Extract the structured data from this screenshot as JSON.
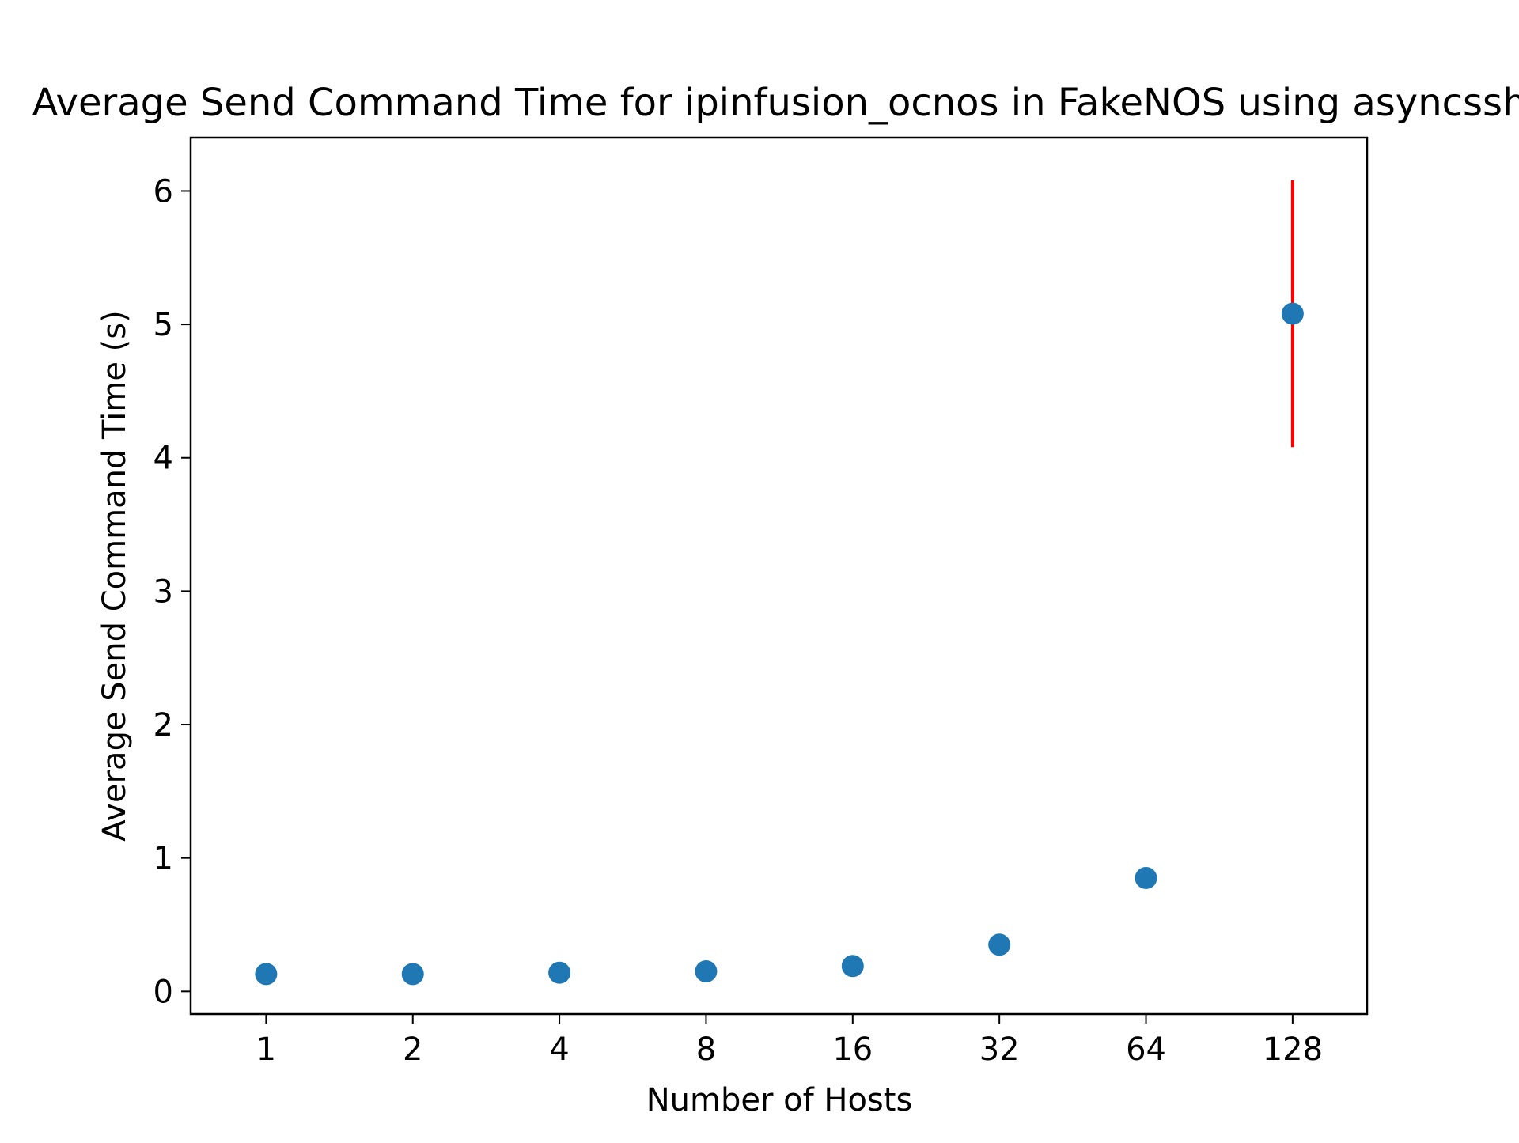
{
  "chart_data": {
    "type": "scatter",
    "title": "Average Send Command Time for ipinfusion_ocnos in FakeNOS using asyncssh",
    "xlabel": "Number of Hosts",
    "ylabel": "Average Send Command Time (s)",
    "x_scale": "log2",
    "x_ticks": [
      "1",
      "2",
      "4",
      "8",
      "16",
      "32",
      "64",
      "128"
    ],
    "y_ticks": [
      "0",
      "1",
      "2",
      "3",
      "4",
      "5",
      "6"
    ],
    "ylim": [
      -0.17,
      6.4
    ],
    "xlim": [
      0.7,
      182
    ],
    "grid": false,
    "legend": "none",
    "colors": {
      "marker": "#1f77b4",
      "errorbar": "#ff0000"
    },
    "points": [
      {
        "x": 1,
        "y": 0.13
      },
      {
        "x": 2,
        "y": 0.13
      },
      {
        "x": 4,
        "y": 0.14
      },
      {
        "x": 8,
        "y": 0.15
      },
      {
        "x": 16,
        "y": 0.19
      },
      {
        "x": 32,
        "y": 0.35
      },
      {
        "x": 64,
        "y": 0.85
      },
      {
        "x": 128,
        "y": 5.08,
        "err": 1.0
      }
    ]
  }
}
